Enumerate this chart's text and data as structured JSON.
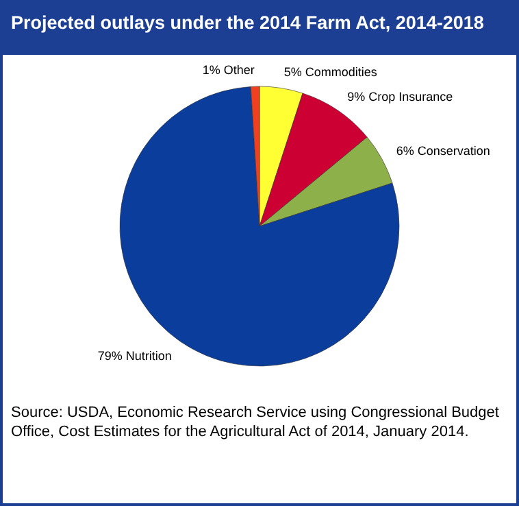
{
  "chart_data": {
    "type": "pie",
    "title": "Projected outlays under the 2014 Farm Act, 2014-2018",
    "categories": [
      "Commodities",
      "Crop Insurance",
      "Conservation",
      "Nutrition",
      "Other"
    ],
    "values": [
      5,
      9,
      6,
      79,
      1
    ],
    "colors": [
      "#ffff33",
      "#cc0033",
      "#8db04a",
      "#0b3d9c",
      "#f04020"
    ],
    "value_labels": [
      "5%",
      "9%",
      "6%",
      "79%",
      "1%"
    ],
    "annotations": [
      "Source: USDA, Economic Research Service using Congressional Budget Office, Cost Estimates for the Agricultural Act of 2014, January 2014."
    ]
  }
}
